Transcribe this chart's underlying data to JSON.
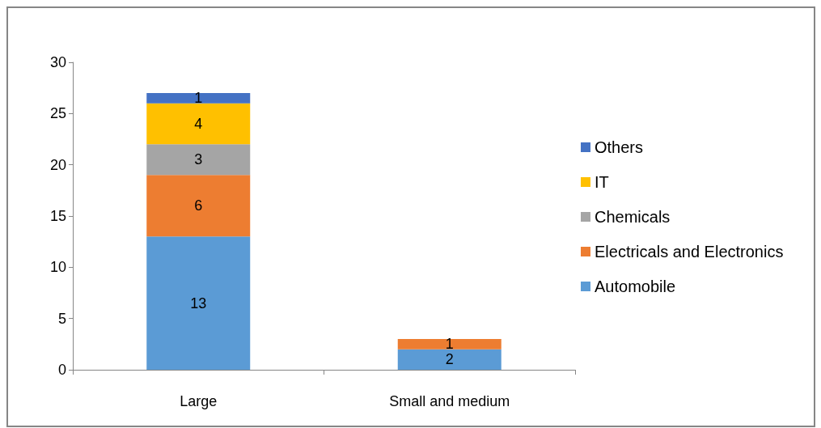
{
  "chart_data": {
    "type": "bar",
    "stacked": true,
    "categories": [
      "Large",
      "Small and medium"
    ],
    "series": [
      {
        "name": "Automobile",
        "color": "#5b9bd5",
        "values": [
          13,
          2
        ],
        "value_labels": [
          "13",
          "2"
        ]
      },
      {
        "name": "Electricals and Electronics",
        "color": "#ed7d31",
        "values": [
          6,
          1
        ],
        "value_labels": [
          "6",
          "1"
        ]
      },
      {
        "name": "Chemicals",
        "color": "#a5a5a5",
        "values": [
          3,
          0
        ],
        "value_labels": [
          "3",
          null
        ]
      },
      {
        "name": "IT",
        "color": "#ffc000",
        "values": [
          4,
          0
        ],
        "value_labels": [
          "4",
          null
        ]
      },
      {
        "name": "Others",
        "color": "#4472c4",
        "values": [
          1,
          0
        ],
        "value_labels": [
          "1",
          null
        ]
      }
    ],
    "ylim": [
      0,
      30
    ],
    "yticks": [
      0,
      5,
      10,
      15,
      20,
      25,
      30
    ],
    "grid": false,
    "legend": "right"
  }
}
